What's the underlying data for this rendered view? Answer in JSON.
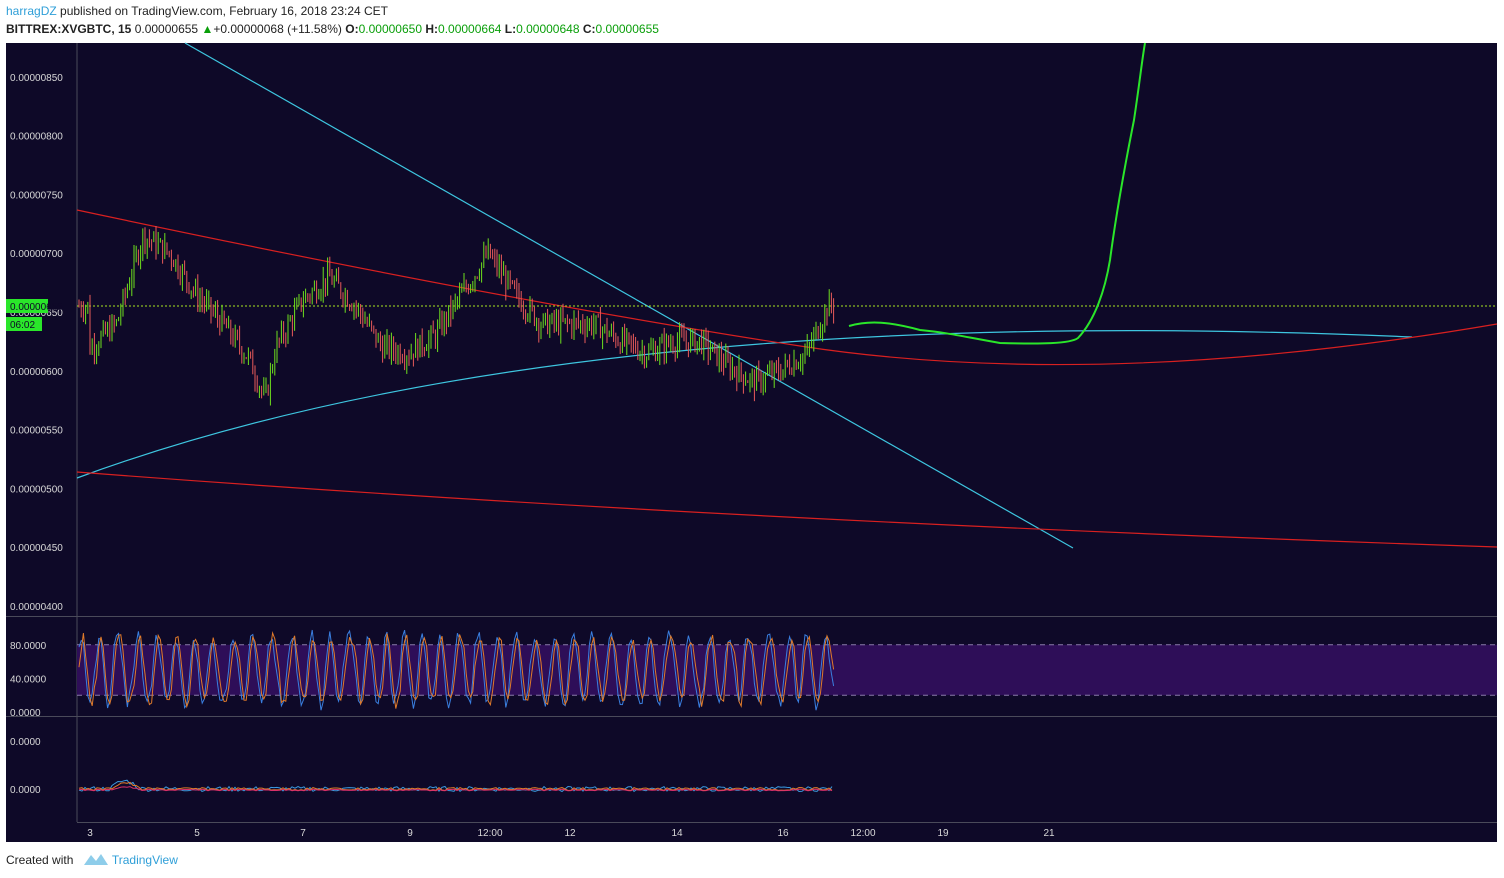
{
  "header": {
    "author": "harragDZ",
    "published": "published on TradingView.com, February 16, 2018 23:24 CET"
  },
  "ticker": {
    "symbol": "BITTREX:XVGBTC, 15",
    "price": "0.00000655",
    "change_arrow": "▲",
    "change": "+0.00000068 (+11.58%)",
    "open_label": "O:",
    "open": "0.00000650",
    "high_label": "H:",
    "high": "0.00000664",
    "low_label": "L:",
    "low": "0.00000648",
    "close_label": "C:",
    "close": "0.00000655"
  },
  "colors": {
    "background": "#0e0928",
    "axis_text": "#d8d8d8",
    "up_candle": "#6ee01e",
    "down_candle": "#e85a5a",
    "trend_cyan": "#3ec6e0",
    "trend_red": "#d82020",
    "projection_green": "#2ae62a",
    "price_line": "#a8e81e",
    "stoch_k": "#3a7fe0",
    "stoch_d": "#e07a2a",
    "stoch_band": "#2e0e58"
  },
  "chart_data": [
    {
      "type": "line",
      "name": "price",
      "y_ticks": [
        "0.00000850",
        "0.00000800",
        "0.00000750",
        "0.00000700",
        "0.00000650",
        "0.00000600",
        "0.00000550",
        "0.00000500",
        "0.00000450",
        "0.00000400"
      ],
      "x_ticks": [
        "3",
        "5",
        "7",
        "9",
        "12:00",
        "12",
        "14",
        "16",
        "12:00",
        "19",
        "21"
      ],
      "current_price_label": "0.00000655",
      "countdown_label": "06:02",
      "ylim": [
        4e-06,
        8.8e-06
      ],
      "series": [
        {
          "x": [
            "3",
            "3.5",
            "4",
            "4.5",
            "5",
            "5.5",
            "6",
            "6.3",
            "6.5",
            "7",
            "7.5",
            "8",
            "8.5",
            "9",
            "9.5",
            "10",
            "10.5",
            "11",
            "11.5",
            "12",
            "12.5",
            "13",
            "13.5",
            "14",
            "14.5",
            "15",
            "15.5",
            "16",
            "16.5",
            "16.9"
          ],
          "y": [
            6.2e-06,
            6.4e-06,
            7.15e-06,
            7e-06,
            6.65e-06,
            6.4e-06,
            6.1e-06,
            5.75e-06,
            6.2e-06,
            6.6e-06,
            6.8e-06,
            6.55e-06,
            6.2e-06,
            6.15e-06,
            6.3e-06,
            6.65e-06,
            7e-06,
            6.65e-06,
            6.4e-06,
            6.4e-06,
            6.4e-06,
            6.25e-06,
            6.15e-06,
            6.25e-06,
            6.25e-06,
            6.05e-06,
            5.9e-06,
            6e-06,
            6.15e-06,
            6.55e-06
          ]
        }
      ]
    },
    {
      "type": "line",
      "name": "stochastic",
      "y_ticks": [
        "80.0000",
        "40.0000",
        "0.0000"
      ],
      "ylim": [
        0,
        100
      ],
      "band": [
        20,
        80
      ]
    },
    {
      "type": "line",
      "name": "oscillator",
      "y_ticks": [
        "0.0000",
        "0.0000"
      ]
    }
  ],
  "footer": {
    "created_with": "Created with",
    "brand": "TradingView"
  }
}
